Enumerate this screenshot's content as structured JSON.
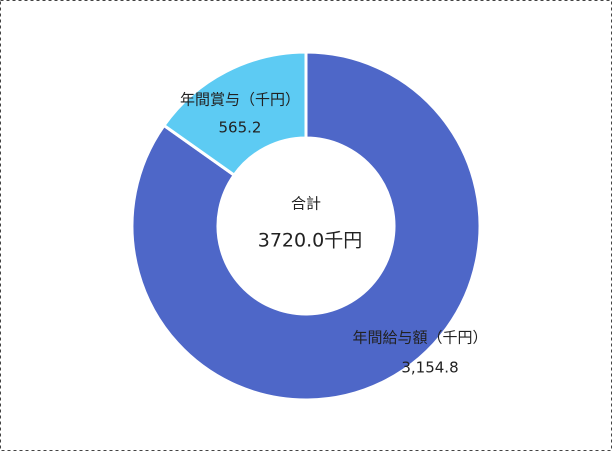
{
  "chart_data": {
    "type": "donut",
    "categories": [
      "年間給与額（千円）",
      "年間賞与（千円）"
    ],
    "values": [
      3154.8,
      565.2
    ],
    "value_labels": [
      "3,154.8",
      "565.2"
    ],
    "colors": [
      "#4e67c8",
      "#5dcbf3"
    ],
    "center_title": "合計",
    "center_text": "3720.0千円"
  }
}
